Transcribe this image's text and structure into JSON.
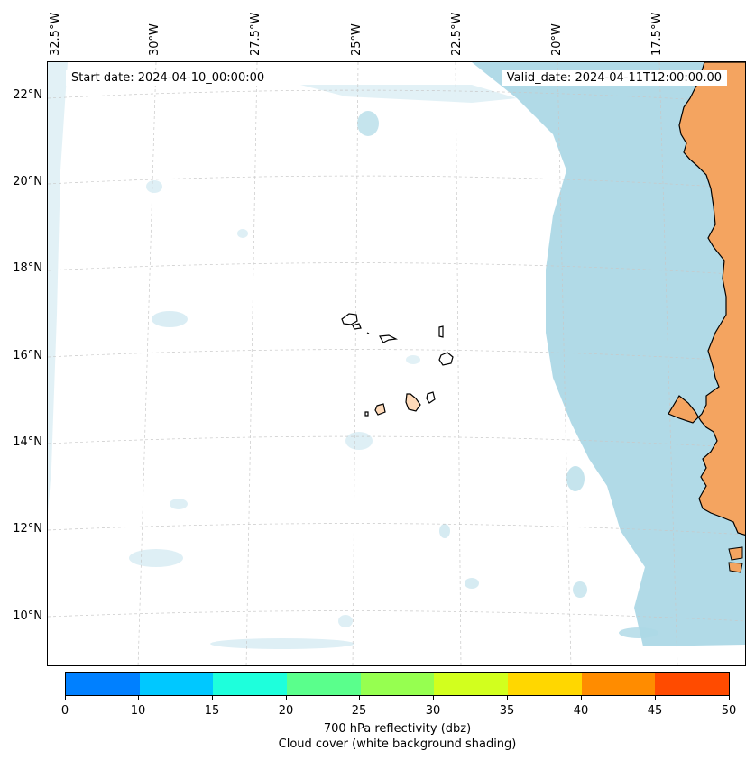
{
  "map": {
    "start_date": "Start date: 2024-04-10_00:00:00",
    "valid_date": "Valid_date: 2024-04-11T12:00:00.00",
    "lat_labels": [
      "22°N",
      "20°N",
      "18°N",
      "16°N",
      "14°N",
      "12°N",
      "10°N"
    ],
    "lon_labels": [
      "32.5°W",
      "30°W",
      "27.5°W",
      "25°W",
      "22.5°W",
      "20°W",
      "17.5°W"
    ],
    "colors": {
      "cloud": "#add8e6",
      "land": "#f4a460",
      "islands": "#ffdab9"
    }
  },
  "colorbar": {
    "ticks": [
      "0",
      "10",
      "15",
      "20",
      "25",
      "30",
      "35",
      "40",
      "45",
      "50"
    ],
    "colors": [
      "#0080ff",
      "#00c8ff",
      "#1effdc",
      "#5aff8c",
      "#96ff50",
      "#d2ff1e",
      "#ffd700",
      "#ff8c00",
      "#ff4b00"
    ],
    "label_line1": "700 hPa reflectivity (dbz)",
    "label_line2": "Cloud cover (white background shading)"
  }
}
